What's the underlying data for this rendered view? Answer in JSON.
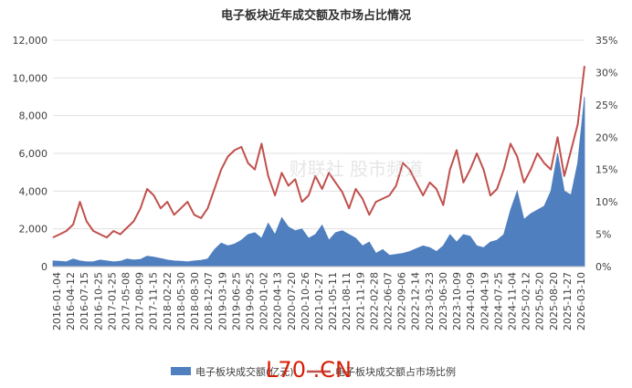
{
  "chart_data": {
    "type": "area+line",
    "title": "电子板块近年成交额及市场占比情况",
    "y_left": {
      "ylim": [
        0,
        12000
      ],
      "ticks": [
        "0",
        "2,000",
        "4,000",
        "6,000",
        "8,000",
        "10,000",
        "12,000"
      ]
    },
    "y_right": {
      "ylim": [
        0,
        35
      ],
      "ticks": [
        "0%",
        "5%",
        "10%",
        "15%",
        "20%",
        "25%",
        "30%",
        "35%"
      ]
    },
    "x_ticks": [
      "2016-01-04",
      "2016-04-12",
      "2016-07-15",
      "2016-10-25",
      "2017-01-25",
      "2017-05-08",
      "2017-08-09",
      "2017-11-15",
      "2018-02-22",
      "2018-05-30",
      "2018-08-30",
      "2018-12-07",
      "2019-03-19",
      "2019-06-25",
      "2019-09-25",
      "2020-01-02",
      "2020-04-13",
      "2020-07-20",
      "2020-10-26",
      "2021-01-27",
      "2021-05-11",
      "2021-08-11",
      "2021-11-19",
      "2022-02-28",
      "2022-06-07",
      "2022-09-06",
      "2022-12-14",
      "2023-03-23",
      "2023-06-30",
      "2023-10-09",
      "2024-01-09",
      "2024-04-19",
      "2024-07-25",
      "2024-11-04",
      "2025-02-12",
      "2025-05-20",
      "2025-08-20",
      "2025-11-27",
      "2026-03-10"
    ],
    "legend": [
      "电子板块成交额(亿元)",
      "电子板块成交额占市场比例"
    ],
    "colors": {
      "area": "#4f7fbf",
      "line": "#c0504d"
    },
    "series": [
      {
        "name": "电子板块成交额(亿元)",
        "axis": "left",
        "kind": "area",
        "values": [
          300,
          280,
          250,
          400,
          300,
          250,
          260,
          350,
          300,
          250,
          280,
          400,
          350,
          380,
          550,
          500,
          430,
          350,
          300,
          280,
          250,
          300,
          330,
          400,
          900,
          1250,
          1100,
          1200,
          1400,
          1700,
          1800,
          1500,
          2300,
          1700,
          2600,
          2100,
          1900,
          2000,
          1500,
          1700,
          2200,
          1400,
          1800,
          1900,
          1700,
          1500,
          1100,
          1300,
          700,
          900,
          600,
          650,
          700,
          800,
          950,
          1100,
          1000,
          800,
          1100,
          1700,
          1300,
          1700,
          1600,
          1100,
          1000,
          1300,
          1400,
          1700,
          3000,
          4000,
          2500,
          2800,
          3000,
          3200,
          4000,
          6000,
          4000,
          3800,
          5500,
          9000
        ]
      },
      {
        "name": "电子板块成交额占市场比例",
        "axis": "right",
        "kind": "line",
        "values": [
          4.5,
          5.0,
          5.5,
          6.5,
          10.0,
          7.0,
          5.5,
          5.0,
          4.5,
          5.5,
          5.0,
          6.0,
          7.0,
          9.0,
          12.0,
          11.0,
          9.0,
          10.0,
          8.0,
          9.0,
          10.0,
          8.0,
          7.5,
          9.0,
          12.0,
          15.0,
          17.0,
          18.0,
          18.5,
          16.0,
          15.0,
          19.0,
          14.0,
          11.0,
          14.5,
          12.5,
          13.5,
          10.0,
          11.0,
          14.0,
          12.0,
          14.5,
          13.0,
          11.5,
          9.0,
          12.0,
          10.5,
          8.0,
          10.0,
          10.5,
          11.0,
          12.5,
          16.0,
          15.0,
          13.0,
          11.0,
          13.0,
          12.0,
          9.5,
          15.0,
          18.0,
          13.0,
          15.0,
          17.5,
          15.0,
          11.0,
          12.0,
          15.0,
          19.0,
          17.0,
          13.0,
          15.0,
          17.5,
          16.0,
          15.0,
          20.0,
          14.0,
          18.0,
          22.0,
          31.0
        ]
      }
    ]
  },
  "watermark": "财联社 股市频道",
  "logo_text": "L70 .CN"
}
